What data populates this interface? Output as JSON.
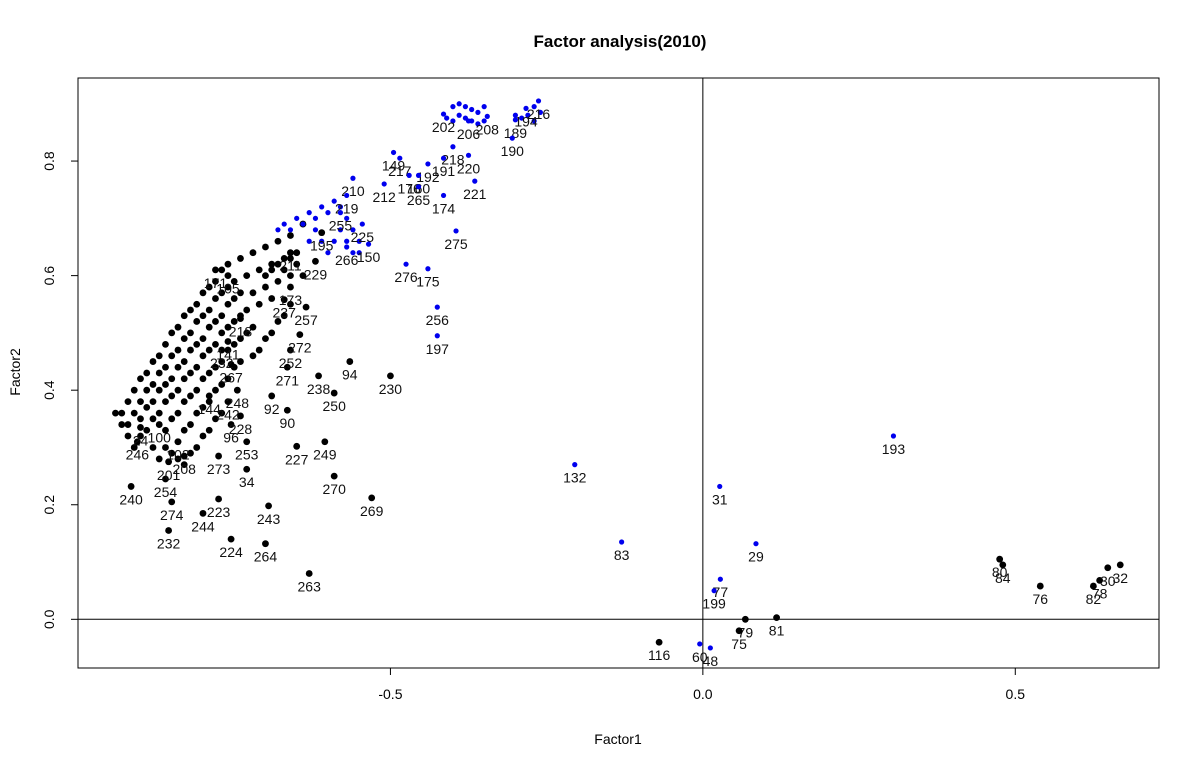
{
  "chart_data": {
    "type": "scatter",
    "title": "Factor analysis(2010)",
    "xlabel": "Factor1",
    "ylabel": "Factor2",
    "xlim": [
      -1.0,
      0.73
    ],
    "ylim": [
      -0.085,
      0.945
    ],
    "x_ticks": [
      -0.5,
      0.0,
      0.5
    ],
    "x_tick_labels": [
      "-0.5",
      "0.0",
      "0.5"
    ],
    "y_ticks": [
      0.0,
      0.2,
      0.4,
      0.6,
      0.8
    ],
    "y_tick_labels": [
      "0.0",
      "0.2",
      "0.4",
      "0.6",
      "0.8"
    ],
    "reference_lines": {
      "x": 0,
      "y": 0
    },
    "grid": false,
    "colors": {
      "black_points": "#000000",
      "blue_points": "#0000ee"
    },
    "points": [
      {
        "label": "216",
        "x": -0.263,
        "y": 0.905,
        "color": "blue"
      },
      {
        "label": "194",
        "x": -0.283,
        "y": 0.892,
        "color": "blue"
      },
      {
        "label": "189",
        "x": -0.3,
        "y": 0.872,
        "color": "blue"
      },
      {
        "label": "190",
        "x": -0.305,
        "y": 0.84,
        "color": "blue"
      },
      {
        "label": "208",
        "x": -0.345,
        "y": 0.878,
        "color": "blue"
      },
      {
        "label": "202",
        "x": -0.415,
        "y": 0.882,
        "color": "blue"
      },
      {
        "label": "206",
        "x": -0.375,
        "y": 0.87,
        "color": "blue"
      },
      {
        "label": "218",
        "x": -0.4,
        "y": 0.825,
        "color": "blue"
      },
      {
        "label": "191",
        "x": -0.415,
        "y": 0.805,
        "color": "blue"
      },
      {
        "label": "220",
        "x": -0.375,
        "y": 0.81,
        "color": "blue"
      },
      {
        "label": "221",
        "x": -0.365,
        "y": 0.765,
        "color": "blue"
      },
      {
        "label": "149",
        "x": -0.495,
        "y": 0.815,
        "color": "blue"
      },
      {
        "label": "217",
        "x": -0.485,
        "y": 0.805,
        "color": "blue"
      },
      {
        "label": "192",
        "x": -0.44,
        "y": 0.795,
        "color": "blue"
      },
      {
        "label": "176",
        "x": -0.47,
        "y": 0.775,
        "color": "blue"
      },
      {
        "label": "160",
        "x": -0.455,
        "y": 0.775,
        "color": "blue"
      },
      {
        "label": "265",
        "x": -0.455,
        "y": 0.755,
        "color": "blue"
      },
      {
        "label": "174",
        "x": -0.415,
        "y": 0.74,
        "color": "blue"
      },
      {
        "label": "210",
        "x": -0.56,
        "y": 0.77,
        "color": "blue"
      },
      {
        "label": "212",
        "x": -0.51,
        "y": 0.76,
        "color": "blue"
      },
      {
        "label": "219",
        "x": -0.57,
        "y": 0.74,
        "color": "blue"
      },
      {
        "label": "255",
        "x": -0.58,
        "y": 0.71,
        "color": "blue"
      },
      {
        "label": "225",
        "x": -0.545,
        "y": 0.69,
        "color": "blue"
      },
      {
        "label": "275",
        "x": -0.395,
        "y": 0.678,
        "color": "blue"
      },
      {
        "label": "150",
        "x": -0.535,
        "y": 0.655,
        "color": "blue"
      },
      {
        "label": "266",
        "x": -0.57,
        "y": 0.65,
        "color": "blue"
      },
      {
        "label": "276",
        "x": -0.475,
        "y": 0.62,
        "color": "blue"
      },
      {
        "label": "175",
        "x": -0.44,
        "y": 0.612,
        "color": "blue"
      },
      {
        "label": "256",
        "x": -0.425,
        "y": 0.545,
        "color": "blue"
      },
      {
        "label": "197",
        "x": -0.425,
        "y": 0.495,
        "color": "blue"
      },
      {
        "label": "132",
        "x": -0.205,
        "y": 0.27,
        "color": "blue"
      },
      {
        "label": "83",
        "x": -0.13,
        "y": 0.135,
        "color": "blue"
      },
      {
        "label": "193",
        "x": 0.305,
        "y": 0.32,
        "color": "blue"
      },
      {
        "label": "31",
        "x": 0.027,
        "y": 0.232,
        "color": "blue"
      },
      {
        "label": "29",
        "x": 0.085,
        "y": 0.132,
        "color": "blue"
      },
      {
        "label": "77",
        "x": 0.028,
        "y": 0.07,
        "color": "blue"
      },
      {
        "label": "199",
        "x": 0.018,
        "y": 0.05,
        "color": "blue"
      },
      {
        "label": "60",
        "x": -0.005,
        "y": -0.043,
        "color": "blue"
      },
      {
        "label": "48",
        "x": 0.012,
        "y": -0.05,
        "color": "blue"
      },
      {
        "label": "116",
        "x": -0.07,
        "y": -0.04,
        "color": "black"
      },
      {
        "label": "79",
        "x": 0.068,
        "y": 0.0,
        "color": "black"
      },
      {
        "label": "75",
        "x": 0.058,
        "y": -0.02,
        "color": "black"
      },
      {
        "label": "81",
        "x": 0.118,
        "y": 0.003,
        "color": "black"
      },
      {
        "label": "80",
        "x": 0.475,
        "y": 0.105,
        "color": "black"
      },
      {
        "label": "84",
        "x": 0.48,
        "y": 0.095,
        "color": "black"
      },
      {
        "label": "76",
        "x": 0.54,
        "y": 0.058,
        "color": "black"
      },
      {
        "label": "82",
        "x": 0.625,
        "y": 0.058,
        "color": "black"
      },
      {
        "label": "78",
        "x": 0.635,
        "y": 0.068,
        "color": "black"
      },
      {
        "label": "30",
        "x": 0.648,
        "y": 0.09,
        "color": "black"
      },
      {
        "label": "32",
        "x": 0.668,
        "y": 0.095,
        "color": "black"
      },
      {
        "label": "230",
        "x": -0.5,
        "y": 0.425,
        "color": "black"
      },
      {
        "label": "94",
        "x": -0.565,
        "y": 0.45,
        "color": "black"
      },
      {
        "label": "238",
        "x": -0.615,
        "y": 0.425,
        "color": "black"
      },
      {
        "label": "250",
        "x": -0.59,
        "y": 0.395,
        "color": "black"
      },
      {
        "label": "249",
        "x": -0.605,
        "y": 0.31,
        "color": "black"
      },
      {
        "label": "270",
        "x": -0.59,
        "y": 0.25,
        "color": "black"
      },
      {
        "label": "269",
        "x": -0.53,
        "y": 0.212,
        "color": "black"
      },
      {
        "label": "263",
        "x": -0.63,
        "y": 0.08,
        "color": "black"
      },
      {
        "label": "264",
        "x": -0.7,
        "y": 0.132,
        "color": "black"
      },
      {
        "label": "243",
        "x": -0.695,
        "y": 0.198,
        "color": "black"
      },
      {
        "label": "227",
        "x": -0.65,
        "y": 0.302,
        "color": "black"
      },
      {
        "label": "90",
        "x": -0.665,
        "y": 0.365,
        "color": "black"
      },
      {
        "label": "92",
        "x": -0.69,
        "y": 0.39,
        "color": "black"
      },
      {
        "label": "271",
        "x": -0.665,
        "y": 0.44,
        "color": "black"
      },
      {
        "label": "252",
        "x": -0.66,
        "y": 0.47,
        "color": "black"
      },
      {
        "label": "272",
        "x": -0.645,
        "y": 0.497,
        "color": "black"
      },
      {
        "label": "257",
        "x": -0.635,
        "y": 0.545,
        "color": "black"
      },
      {
        "label": "237",
        "x": -0.67,
        "y": 0.558,
        "color": "black"
      },
      {
        "label": "173",
        "x": -0.66,
        "y": 0.58,
        "color": "black"
      },
      {
        "label": "229",
        "x": -0.62,
        "y": 0.625,
        "color": "black"
      },
      {
        "label": "211",
        "x": -0.66,
        "y": 0.64,
        "color": "black"
      },
      {
        "label": "195",
        "x": -0.61,
        "y": 0.675,
        "color": "black"
      },
      {
        "label": "240",
        "x": -0.915,
        "y": 0.232,
        "color": "black"
      },
      {
        "label": "232",
        "x": -0.855,
        "y": 0.155,
        "color": "black"
      },
      {
        "label": "274",
        "x": -0.85,
        "y": 0.205,
        "color": "black"
      },
      {
        "label": "254",
        "x": -0.86,
        "y": 0.245,
        "color": "black"
      },
      {
        "label": "244",
        "x": -0.8,
        "y": 0.185,
        "color": "black"
      },
      {
        "label": "223",
        "x": -0.775,
        "y": 0.21,
        "color": "black"
      },
      {
        "label": "224",
        "x": -0.755,
        "y": 0.14,
        "color": "black"
      },
      {
        "label": "34",
        "x": -0.73,
        "y": 0.262,
        "color": "black"
      },
      {
        "label": "273",
        "x": -0.775,
        "y": 0.285,
        "color": "black"
      },
      {
        "label": "253",
        "x": -0.73,
        "y": 0.31,
        "color": "black"
      },
      {
        "label": "246",
        "x": -0.905,
        "y": 0.31,
        "color": "black"
      },
      {
        "label": "24",
        "x": -0.9,
        "y": 0.335,
        "color": "black"
      },
      {
        "label": "96",
        "x": -0.755,
        "y": 0.34,
        "color": "black"
      },
      {
        "label": "228",
        "x": -0.74,
        "y": 0.355,
        "color": "black"
      },
      {
        "label": "144",
        "x": -0.79,
        "y": 0.39,
        "color": "black"
      },
      {
        "label": "242",
        "x": -0.76,
        "y": 0.38,
        "color": "black"
      },
      {
        "label": "248",
        "x": -0.745,
        "y": 0.4,
        "color": "black"
      },
      {
        "label": "267",
        "x": -0.755,
        "y": 0.445,
        "color": "black"
      },
      {
        "label": "232b",
        "x": -0.77,
        "y": 0.47,
        "color": "black"
      },
      {
        "label": "141",
        "x": -0.76,
        "y": 0.485,
        "color": "black"
      },
      {
        "label": "218b",
        "x": -0.74,
        "y": 0.525,
        "color": "black"
      },
      {
        "label": "171",
        "x": -0.78,
        "y": 0.61,
        "color": "black"
      },
      {
        "label": "105",
        "x": -0.76,
        "y": 0.6,
        "color": "black"
      },
      {
        "label": "201",
        "x": -0.855,
        "y": 0.275,
        "color": "black"
      },
      {
        "label": "100",
        "x": -0.87,
        "y": 0.34,
        "color": "black"
      },
      {
        "label": "102",
        "x": -0.84,
        "y": 0.31,
        "color": "black"
      },
      {
        "label": "208b",
        "x": -0.83,
        "y": 0.285,
        "color": "black"
      }
    ],
    "cluster_points": [
      [
        -0.93,
        0.36
      ],
      [
        -0.92,
        0.38
      ],
      [
        -0.91,
        0.4
      ],
      [
        -0.9,
        0.42
      ],
      [
        -0.89,
        0.43
      ],
      [
        -0.88,
        0.45
      ],
      [
        -0.87,
        0.46
      ],
      [
        -0.86,
        0.48
      ],
      [
        -0.85,
        0.5
      ],
      [
        -0.84,
        0.51
      ],
      [
        -0.83,
        0.53
      ],
      [
        -0.82,
        0.54
      ],
      [
        -0.81,
        0.55
      ],
      [
        -0.8,
        0.57
      ],
      [
        -0.79,
        0.58
      ],
      [
        -0.78,
        0.59
      ],
      [
        -0.77,
        0.61
      ],
      [
        -0.76,
        0.62
      ],
      [
        -0.74,
        0.63
      ],
      [
        -0.72,
        0.64
      ],
      [
        -0.7,
        0.65
      ],
      [
        -0.68,
        0.66
      ],
      [
        -0.66,
        0.67
      ],
      [
        -0.64,
        0.69
      ],
      [
        -0.92,
        0.34
      ],
      [
        -0.91,
        0.36
      ],
      [
        -0.9,
        0.38
      ],
      [
        -0.89,
        0.4
      ],
      [
        -0.88,
        0.41
      ],
      [
        -0.87,
        0.43
      ],
      [
        -0.86,
        0.44
      ],
      [
        -0.85,
        0.46
      ],
      [
        -0.84,
        0.47
      ],
      [
        -0.83,
        0.49
      ],
      [
        -0.82,
        0.5
      ],
      [
        -0.81,
        0.52
      ],
      [
        -0.8,
        0.53
      ],
      [
        -0.79,
        0.54
      ],
      [
        -0.78,
        0.56
      ],
      [
        -0.77,
        0.57
      ],
      [
        -0.76,
        0.58
      ],
      [
        -0.75,
        0.59
      ],
      [
        -0.73,
        0.6
      ],
      [
        -0.71,
        0.61
      ],
      [
        -0.69,
        0.62
      ],
      [
        -0.67,
        0.63
      ],
      [
        -0.65,
        0.64
      ],
      [
        -0.9,
        0.35
      ],
      [
        -0.89,
        0.37
      ],
      [
        -0.88,
        0.38
      ],
      [
        -0.87,
        0.4
      ],
      [
        -0.86,
        0.41
      ],
      [
        -0.85,
        0.42
      ],
      [
        -0.84,
        0.44
      ],
      [
        -0.83,
        0.45
      ],
      [
        -0.82,
        0.47
      ],
      [
        -0.81,
        0.48
      ],
      [
        -0.8,
        0.49
      ],
      [
        -0.79,
        0.51
      ],
      [
        -0.78,
        0.52
      ],
      [
        -0.77,
        0.53
      ],
      [
        -0.76,
        0.55
      ],
      [
        -0.75,
        0.56
      ],
      [
        -0.74,
        0.57
      ],
      [
        -0.72,
        0.57
      ],
      [
        -0.7,
        0.58
      ],
      [
        -0.68,
        0.59
      ],
      [
        -0.66,
        0.6
      ],
      [
        -0.88,
        0.35
      ],
      [
        -0.87,
        0.36
      ],
      [
        -0.86,
        0.38
      ],
      [
        -0.85,
        0.39
      ],
      [
        -0.84,
        0.4
      ],
      [
        -0.83,
        0.42
      ],
      [
        -0.82,
        0.43
      ],
      [
        -0.81,
        0.44
      ],
      [
        -0.8,
        0.46
      ],
      [
        -0.79,
        0.47
      ],
      [
        -0.78,
        0.48
      ],
      [
        -0.77,
        0.5
      ],
      [
        -0.76,
        0.51
      ],
      [
        -0.75,
        0.52
      ],
      [
        -0.74,
        0.53
      ],
      [
        -0.73,
        0.54
      ],
      [
        -0.71,
        0.55
      ],
      [
        -0.69,
        0.56
      ],
      [
        -0.86,
        0.33
      ],
      [
        -0.85,
        0.35
      ],
      [
        -0.84,
        0.36
      ],
      [
        -0.83,
        0.38
      ],
      [
        -0.82,
        0.39
      ],
      [
        -0.81,
        0.4
      ],
      [
        -0.8,
        0.42
      ],
      [
        -0.79,
        0.43
      ],
      [
        -0.78,
        0.44
      ],
      [
        -0.77,
        0.45
      ],
      [
        -0.76,
        0.47
      ],
      [
        -0.75,
        0.48
      ],
      [
        -0.74,
        0.49
      ],
      [
        -0.73,
        0.5
      ],
      [
        -0.72,
        0.51
      ],
      [
        -0.84,
        0.31
      ],
      [
        -0.83,
        0.33
      ],
      [
        -0.82,
        0.34
      ],
      [
        -0.81,
        0.36
      ],
      [
        -0.8,
        0.37
      ],
      [
        -0.79,
        0.38
      ],
      [
        -0.78,
        0.4
      ],
      [
        -0.77,
        0.41
      ],
      [
        -0.76,
        0.42
      ],
      [
        -0.75,
        0.44
      ],
      [
        -0.74,
        0.45
      ],
      [
        -0.88,
        0.3
      ],
      [
        -0.87,
        0.28
      ],
      [
        -0.86,
        0.3
      ],
      [
        -0.85,
        0.29
      ],
      [
        -0.84,
        0.28
      ],
      [
        -0.83,
        0.27
      ],
      [
        -0.82,
        0.29
      ],
      [
        -0.81,
        0.3
      ],
      [
        -0.8,
        0.32
      ],
      [
        -0.79,
        0.33
      ],
      [
        -0.78,
        0.35
      ],
      [
        -0.77,
        0.36
      ],
      [
        -0.91,
        0.3
      ],
      [
        -0.9,
        0.32
      ],
      [
        -0.89,
        0.33
      ],
      [
        -0.92,
        0.32
      ],
      [
        -0.93,
        0.34
      ],
      [
        -0.94,
        0.36
      ],
      [
        -0.72,
        0.46
      ],
      [
        -0.71,
        0.47
      ],
      [
        -0.7,
        0.49
      ],
      [
        -0.69,
        0.5
      ],
      [
        -0.68,
        0.52
      ],
      [
        -0.67,
        0.53
      ],
      [
        -0.66,
        0.55
      ],
      [
        -0.7,
        0.6
      ],
      [
        -0.69,
        0.61
      ],
      [
        -0.68,
        0.62
      ],
      [
        -0.67,
        0.61
      ],
      [
        -0.66,
        0.63
      ],
      [
        -0.65,
        0.62
      ],
      [
        -0.64,
        0.6
      ]
    ],
    "cluster_points_blue": [
      [
        -0.68,
        0.68
      ],
      [
        -0.67,
        0.69
      ],
      [
        -0.66,
        0.68
      ],
      [
        -0.65,
        0.7
      ],
      [
        -0.64,
        0.69
      ],
      [
        -0.63,
        0.71
      ],
      [
        -0.62,
        0.7
      ],
      [
        -0.61,
        0.72
      ],
      [
        -0.6,
        0.71
      ],
      [
        -0.59,
        0.73
      ],
      [
        -0.58,
        0.72
      ],
      [
        -0.57,
        0.7
      ],
      [
        -0.56,
        0.68
      ],
      [
        -0.55,
        0.66
      ],
      [
        -0.63,
        0.66
      ],
      [
        -0.62,
        0.68
      ],
      [
        -0.61,
        0.66
      ],
      [
        -0.6,
        0.64
      ],
      [
        -0.59,
        0.66
      ],
      [
        -0.58,
        0.68
      ],
      [
        -0.57,
        0.66
      ],
      [
        -0.56,
        0.64
      ],
      [
        -0.55,
        0.64
      ],
      [
        -0.4,
        0.895
      ],
      [
        -0.39,
        0.9
      ],
      [
        -0.38,
        0.895
      ],
      [
        -0.37,
        0.89
      ],
      [
        -0.36,
        0.885
      ],
      [
        -0.35,
        0.895
      ],
      [
        -0.39,
        0.88
      ],
      [
        -0.38,
        0.875
      ],
      [
        -0.37,
        0.87
      ],
      [
        -0.36,
        0.865
      ],
      [
        -0.35,
        0.87
      ],
      [
        -0.4,
        0.87
      ],
      [
        -0.41,
        0.875
      ],
      [
        -0.27,
        0.895
      ],
      [
        -0.28,
        0.88
      ],
      [
        -0.29,
        0.875
      ],
      [
        -0.3,
        0.88
      ],
      [
        -0.27,
        0.87
      ],
      [
        -0.26,
        0.885
      ]
    ]
  }
}
